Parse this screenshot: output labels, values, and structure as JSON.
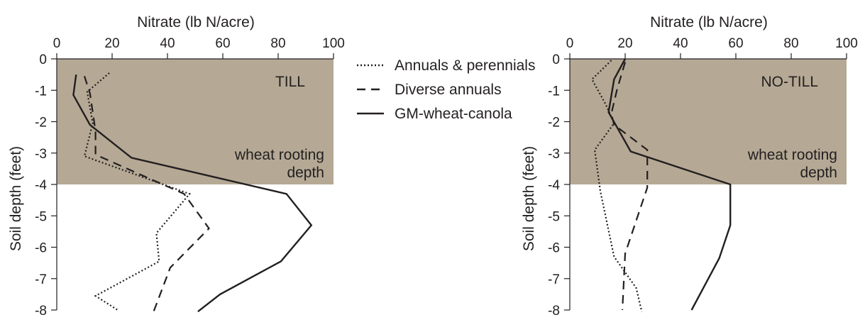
{
  "colors": {
    "background": "#ffffff",
    "root_zone_fill": "#b5a995",
    "ink": "#231f20",
    "overlay_text": "#ffffff"
  },
  "legend": {
    "placement": "center-top",
    "entries": [
      {
        "label": "Annuals & perennials",
        "style": "dotted"
      },
      {
        "label": "Diverse annuals",
        "style": "dashed"
      },
      {
        "label": "GM-wheat-canola",
        "style": "solid"
      }
    ]
  },
  "chart_data": [
    {
      "type": "line",
      "panel_label": "TILL",
      "shade_label_line1": "wheat rooting",
      "shade_label_line2": "depth",
      "xlabel": "Nitrate (lb N/acre)",
      "ylabel": "Soil depth (feet)",
      "xlim": [
        0,
        100
      ],
      "ylim": [
        -8,
        0
      ],
      "xticks": [
        0,
        20,
        40,
        60,
        80,
        100
      ],
      "yticks": [
        0,
        -1,
        -2,
        -3,
        -4,
        -5,
        -6,
        -7,
        -8
      ],
      "shaded_band_depth": [
        0,
        -4
      ],
      "series": [
        {
          "name": "Annuals & perennials",
          "style": "dotted",
          "points": [
            [
              19,
              -0.45
            ],
            [
              11,
              -1.05
            ],
            [
              13,
              -2.05
            ],
            [
              10,
              -3.1
            ],
            [
              48,
              -4.3
            ],
            [
              36,
              -5.55
            ],
            [
              37,
              -6.45
            ],
            [
              14,
              -7.55
            ],
            [
              22,
              -8.0
            ]
          ]
        },
        {
          "name": "Diverse annuals",
          "style": "dashed",
          "points": [
            [
              10,
              -0.55
            ],
            [
              12,
              -1.1
            ],
            [
              14,
              -2.3
            ],
            [
              14,
              -3.05
            ],
            [
              46,
              -4.3
            ],
            [
              55,
              -5.4
            ],
            [
              41,
              -6.65
            ],
            [
              35,
              -8.05
            ]
          ]
        },
        {
          "name": "GM-wheat-canola",
          "style": "solid",
          "points": [
            [
              7,
              -0.5
            ],
            [
              6,
              -1.15
            ],
            [
              12,
              -2.1
            ],
            [
              27,
              -3.15
            ],
            [
              83,
              -4.3
            ],
            [
              92,
              -5.3
            ],
            [
              81,
              -6.45
            ],
            [
              59,
              -7.5
            ],
            [
              51,
              -8.05
            ]
          ]
        }
      ]
    },
    {
      "type": "line",
      "panel_label": "NO-TILL",
      "shade_label_line1": "wheat rooting",
      "shade_label_line2": "depth",
      "xlabel": "Nitrate (lb N/acre)",
      "ylabel": "Soil depth (feet)",
      "xlim": [
        0,
        100
      ],
      "ylim": [
        -8,
        0
      ],
      "xticks": [
        0,
        20,
        40,
        60,
        80,
        100
      ],
      "yticks": [
        0,
        -1,
        -2,
        -3,
        -4,
        -5,
        -6,
        -7,
        -8
      ],
      "shaded_band_depth": [
        0,
        -4
      ],
      "series": [
        {
          "name": "Annuals & perennials",
          "style": "dotted",
          "points": [
            [
              15,
              -0.05
            ],
            [
              8,
              -0.65
            ],
            [
              13,
              -1.45
            ],
            [
              16,
              -2.05
            ],
            [
              9,
              -2.9
            ],
            [
              11,
              -4.2
            ],
            [
              16,
              -6.3
            ],
            [
              24,
              -7.3
            ],
            [
              26,
              -8.05
            ]
          ]
        },
        {
          "name": "Diverse annuals",
          "style": "dashed",
          "points": [
            [
              20,
              -0.1
            ],
            [
              17,
              -1.0
            ],
            [
              15,
              -1.75
            ],
            [
              16,
              -2.1
            ],
            [
              28,
              -2.9
            ],
            [
              28,
              -4.1
            ],
            [
              20,
              -6.2
            ],
            [
              19,
              -8.0
            ]
          ]
        },
        {
          "name": "GM-wheat-canola",
          "style": "solid",
          "points": [
            [
              20,
              0.0
            ],
            [
              16,
              -0.65
            ],
            [
              14,
              -1.7
            ],
            [
              22,
              -2.95
            ],
            [
              58,
              -4.0
            ],
            [
              58,
              -5.3
            ],
            [
              54,
              -6.35
            ],
            [
              44,
              -8.0
            ]
          ]
        }
      ]
    }
  ]
}
